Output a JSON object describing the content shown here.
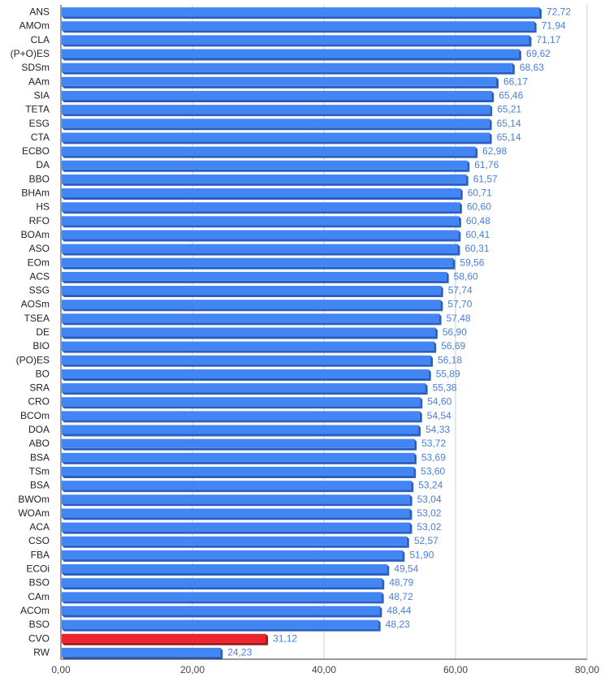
{
  "chart_data": {
    "type": "bar",
    "orientation": "horizontal",
    "bar_style": "3d",
    "title": "",
    "xlabel": "",
    "ylabel": "",
    "xlim": [
      0,
      80
    ],
    "grid": true,
    "bar_color": "#4285f4",
    "bar_side_color": "#2a5fc0",
    "highlight_color": "#e8262b",
    "highlight_side_color": "#a31419",
    "value_label_color": "#4a7fd6",
    "x_ticks": [
      "0,00",
      "20,00",
      "40,00",
      "60,00",
      "80,00"
    ],
    "categories": [
      "ANS",
      "AMOm",
      "CLA",
      "(P+O)ES",
      "SDSm",
      "AAm",
      "SIA",
      "TETA",
      "ESG",
      "CTA",
      "ECBO",
      "DA",
      "BBO",
      "BHAm",
      "HS",
      "RFO",
      "BOAm",
      "ASO",
      "EOm",
      "ACS",
      "SSG",
      "AOSm",
      "TSEA",
      "DE",
      "BIO",
      "(PO)ES",
      "BO",
      "SRA",
      "CRO",
      "BCOm",
      "DOA",
      "ABO",
      "BSA",
      "TSm",
      "BSA",
      "BWOm",
      "WOAm",
      "ACA",
      "CSO",
      "FBA",
      "ECOi",
      "BSO",
      "CAm",
      "ACOm",
      "BSO",
      "CVO",
      "RW"
    ],
    "values": [
      72.72,
      71.94,
      71.17,
      69.62,
      68.63,
      66.17,
      65.46,
      65.21,
      65.14,
      65.14,
      62.98,
      61.76,
      61.57,
      60.71,
      60.6,
      60.48,
      60.41,
      60.31,
      59.56,
      58.6,
      57.74,
      57.7,
      57.48,
      56.9,
      56.69,
      56.18,
      55.89,
      55.38,
      54.6,
      54.54,
      54.33,
      53.72,
      53.69,
      53.6,
      53.24,
      53.04,
      53.02,
      53.02,
      52.57,
      51.9,
      49.54,
      48.79,
      48.72,
      48.44,
      48.23,
      31.12,
      24.23
    ],
    "value_labels": [
      "72,72",
      "71,94",
      "71,17",
      "69,62",
      "68,63",
      "66,17",
      "65,46",
      "65,21",
      "65,14",
      "65,14",
      "62,98",
      "61,76",
      "61,57",
      "60,71",
      "60,60",
      "60,48",
      "60,41",
      "60,31",
      "59,56",
      "58,60",
      "57,74",
      "57,70",
      "57,48",
      "56,90",
      "56,69",
      "56,18",
      "55,89",
      "55,38",
      "54,60",
      "54,54",
      "54,33",
      "53,72",
      "53,69",
      "53,60",
      "53,24",
      "53,04",
      "53,02",
      "53,02",
      "52,57",
      "51,90",
      "49,54",
      "48,79",
      "48,72",
      "48,44",
      "48,23",
      "31,12",
      "24,23"
    ],
    "highlighted_category": "CVO"
  }
}
